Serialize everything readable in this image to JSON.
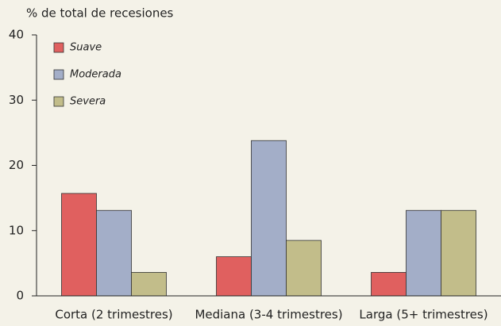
{
  "chart_data": {
    "type": "bar",
    "y_label": "% de total de recesiones",
    "categories": [
      "Corta (2 trimestres)",
      "Mediana (3-4 trimestres)",
      "Larga (5+ trimestres)"
    ],
    "series": [
      {
        "name": "Suave",
        "color": "#e0605f",
        "values": [
          15.7,
          6.0,
          3.6
        ]
      },
      {
        "name": "Moderada",
        "color": "#a3aec8",
        "values": [
          13.1,
          23.8,
          13.1
        ]
      },
      {
        "name": "Severa",
        "color": "#c2bd8a",
        "values": [
          3.6,
          8.5,
          13.1
        ]
      }
    ],
    "ylim": [
      0,
      40
    ],
    "yticks": [
      0,
      10,
      20,
      30,
      40
    ],
    "grid": false,
    "legend": "upper left"
  }
}
